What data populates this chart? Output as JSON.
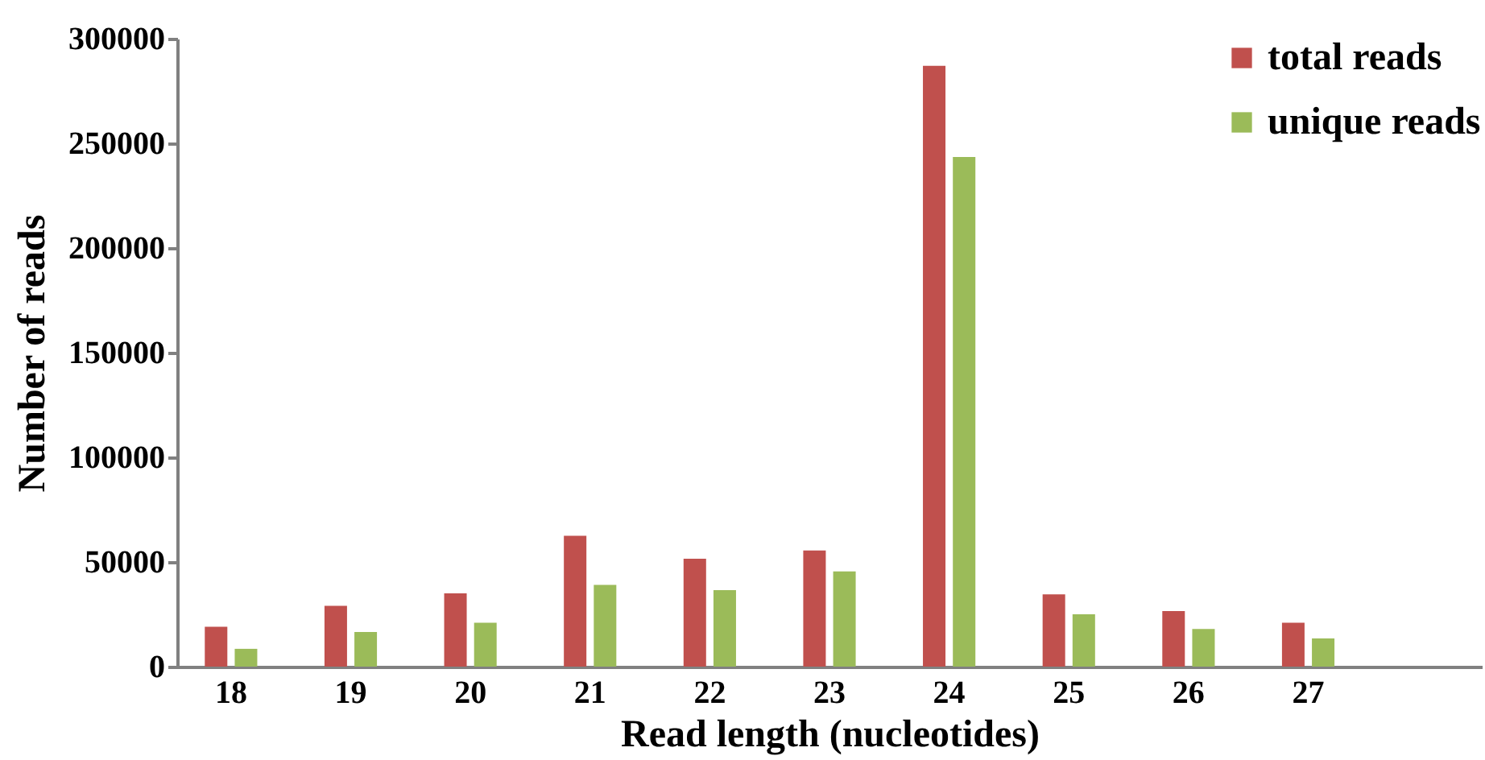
{
  "chart_data": {
    "type": "bar",
    "xlabel": "Read length (nucleotides)",
    "ylabel": "Number of reads",
    "categories": [
      "18",
      "19",
      "20",
      "21",
      "22",
      "23",
      "24",
      "25",
      "26",
      "27"
    ],
    "series": [
      {
        "name": "total reads",
        "color": "#c0504d",
        "values": [
          19000,
          29000,
          35000,
          62500,
          51500,
          55500,
          287000,
          34500,
          26500,
          21000
        ]
      },
      {
        "name": "unique reads",
        "color": "#9bbb59",
        "values": [
          8500,
          16500,
          21000,
          39000,
          36500,
          45500,
          243500,
          25000,
          18000,
          13500
        ]
      }
    ],
    "ylim": [
      0,
      300000
    ],
    "yticks": [
      0,
      50000,
      100000,
      150000,
      200000,
      250000,
      300000
    ],
    "grid": false,
    "legend": "top right"
  }
}
